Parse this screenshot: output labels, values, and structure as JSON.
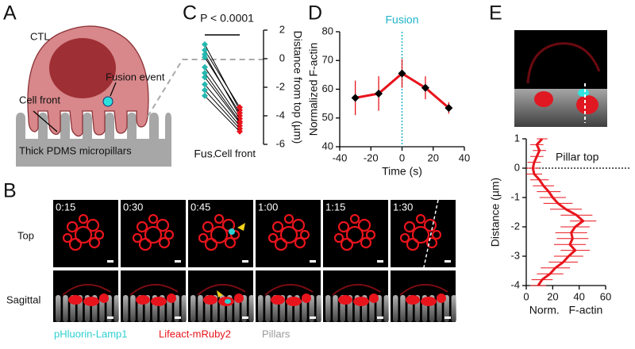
{
  "figure": {
    "panel_labels": [
      "A",
      "B",
      "C",
      "D",
      "E"
    ],
    "diagram": {
      "cell": "CTL",
      "fusion": "Fusion event",
      "front": "Cell front",
      "pillars": "Thick PDMS micropillars"
    },
    "timelapse": {
      "times": [
        "0:15",
        "0:30",
        "0:45",
        "1:00",
        "1:15",
        "1:30"
      ],
      "rows": [
        "Top",
        "Sagittal"
      ],
      "legend": [
        {
          "name": "pHluorin-Lamp1",
          "color": "#2ccfcf"
        },
        {
          "name": "Lifeact-mRuby2",
          "color": "#e8141c"
        },
        {
          "name": "Pillars",
          "color": "#9a9a9a"
        }
      ]
    }
  },
  "chart_data": [
    {
      "type": "line",
      "annotation": "P < 0.0001",
      "categories": [
        "Fus.",
        "Cell front"
      ],
      "marker_colors": [
        "#26b8b0",
        "#e8141c"
      ],
      "ylabel": "Distance from top (µm)",
      "ylim": [
        -6,
        2
      ],
      "yticks": [
        -6,
        -4,
        -2,
        0,
        2
      ],
      "series": [
        {
          "color": "#000000",
          "values": [
            1.0,
            -3.6
          ]
        },
        {
          "color": "#000000",
          "values": [
            0.6,
            -3.4
          ]
        },
        {
          "color": "#000000",
          "values": [
            0.3,
            -4.0
          ]
        },
        {
          "color": "#000000",
          "values": [
            0.1,
            -3.8
          ]
        },
        {
          "color": "#000000",
          "values": [
            -0.6,
            -4.2
          ]
        },
        {
          "color": "#000000",
          "values": [
            -1.0,
            -4.4
          ]
        },
        {
          "color": "#000000",
          "values": [
            -1.3,
            -4.5
          ]
        },
        {
          "color": "#000000",
          "values": [
            -1.8,
            -4.7
          ]
        },
        {
          "color": "#000000",
          "values": [
            -2.2,
            -4.9
          ]
        },
        {
          "color": "#000000",
          "values": [
            -2.6,
            -5.1
          ]
        }
      ]
    },
    {
      "type": "line",
      "annotation": "Fusion",
      "annotation_color": "#1fb3c8",
      "xlabel": "Time (s)",
      "ylabel": "Normalized F-actin",
      "x": [
        -30,
        -15,
        0,
        15,
        30
      ],
      "xlim": [
        -40,
        40
      ],
      "xticks": [
        -40,
        -20,
        0,
        20,
        40
      ],
      "ylim": [
        40,
        80
      ],
      "yticks": [
        40,
        50,
        60,
        70,
        80
      ],
      "marker_color": "#000000",
      "series": [
        {
          "color": "#e8141c",
          "values": [
            57,
            58.5,
            65.5,
            60.5,
            53.5
          ],
          "errors": [
            6,
            6,
            5,
            4,
            2
          ]
        }
      ]
    },
    {
      "type": "line",
      "annotation": "Pillar top",
      "xlabel": "Norm.   F-actin",
      "ylabel": "Distance (µm)",
      "y": [
        1,
        0.8,
        0.6,
        0.4,
        0.2,
        0,
        -0.2,
        -0.4,
        -0.6,
        -0.8,
        -1,
        -1.2,
        -1.4,
        -1.6,
        -1.8,
        -2,
        -2.2,
        -2.4,
        -2.6,
        -2.8,
        -3,
        -3.2,
        -3.4,
        -3.6,
        -3.8,
        -4
      ],
      "xlim": [
        0,
        60
      ],
      "xticks": [
        0,
        20,
        40,
        60
      ],
      "ylim": [
        -4,
        1
      ],
      "yticks": [
        -4,
        -3,
        -2,
        -1,
        0,
        1
      ],
      "series": [
        {
          "color": "#e8141c",
          "values": [
            12,
            8,
            10,
            8,
            6,
            5,
            6,
            10,
            13,
            17,
            20,
            24,
            30,
            38,
            43,
            37,
            34,
            35,
            33,
            37,
            32,
            28,
            22,
            18,
            12,
            9
          ],
          "errors": [
            4,
            5,
            5,
            5,
            5,
            5,
            6,
            7,
            8,
            9,
            10,
            11,
            12,
            12,
            10,
            11,
            12,
            12,
            12,
            11,
            11,
            11,
            11,
            10,
            8,
            6
          ]
        }
      ]
    }
  ]
}
